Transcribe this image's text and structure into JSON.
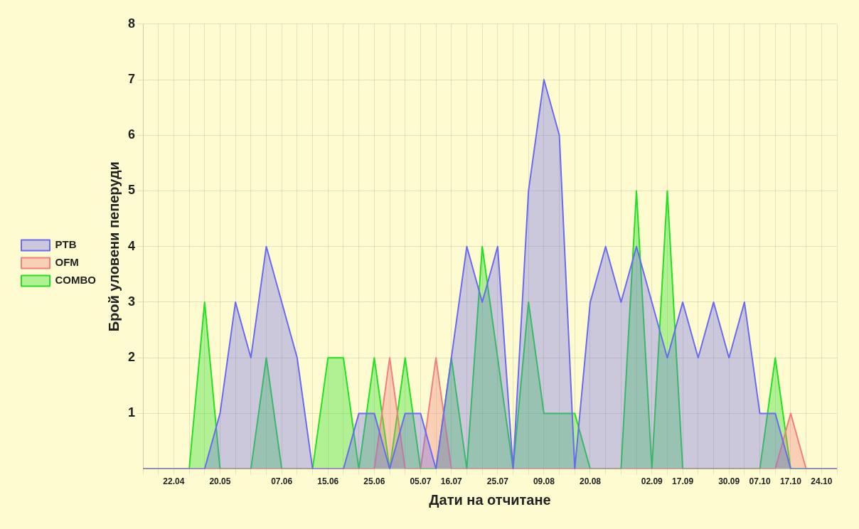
{
  "chart_data": {
    "type": "area",
    "xlabel": "Дати на отчитане",
    "ylabel": "Брой уловени пеперуди",
    "categories": [
      null,
      null,
      "22.04",
      null,
      null,
      "20.05",
      null,
      null,
      null,
      "07.06",
      null,
      null,
      "15.06",
      null,
      null,
      "25.06",
      null,
      null,
      "05.07",
      null,
      "16.07",
      null,
      null,
      "25.07",
      null,
      null,
      "09.08",
      null,
      null,
      "20.08",
      null,
      null,
      null,
      "02.09",
      null,
      "17.09",
      null,
      null,
      "30.09",
      null,
      "07.10",
      null,
      "17.10",
      null,
      "24.10",
      null
    ],
    "series": [
      {
        "name": "PTB",
        "color": "#6a6af0",
        "values": [
          0,
          0,
          0,
          0,
          0,
          1,
          3,
          2,
          4,
          3,
          2,
          0,
          0,
          0,
          1,
          1,
          0,
          1,
          1,
          0,
          2,
          4,
          3,
          4,
          0,
          5,
          7,
          6,
          0,
          3,
          4,
          3,
          4,
          3,
          2,
          3,
          2,
          3,
          2,
          3,
          1,
          1,
          0,
          0,
          0,
          0
        ]
      },
      {
        "name": "OFM",
        "color": "#f08080",
        "values": [
          0,
          0,
          0,
          0,
          0,
          0,
          0,
          0,
          0,
          0,
          0,
          0,
          0,
          0,
          0,
          0,
          2,
          0,
          0,
          2,
          0,
          0,
          0,
          0,
          0,
          0,
          0,
          0,
          0,
          0,
          0,
          0,
          0,
          0,
          0,
          0,
          0,
          0,
          0,
          0,
          0,
          0,
          1,
          0,
          0,
          0
        ]
      },
      {
        "name": "COMBO",
        "color": "#22e022",
        "values": [
          0,
          0,
          0,
          0,
          3,
          0,
          0,
          0,
          2,
          0,
          0,
          0,
          2,
          2,
          0,
          2,
          0,
          2,
          0,
          0,
          2,
          0,
          4,
          2,
          0,
          3,
          1,
          1,
          1,
          0,
          0,
          0,
          5,
          0,
          5,
          0,
          0,
          0,
          0,
          0,
          0,
          2,
          0,
          0,
          0,
          0
        ]
      }
    ],
    "ylim": [
      0,
      8
    ],
    "yticks": [
      1,
      2,
      3,
      4,
      5,
      6,
      7,
      8
    ],
    "grid": true,
    "legend": "left"
  }
}
